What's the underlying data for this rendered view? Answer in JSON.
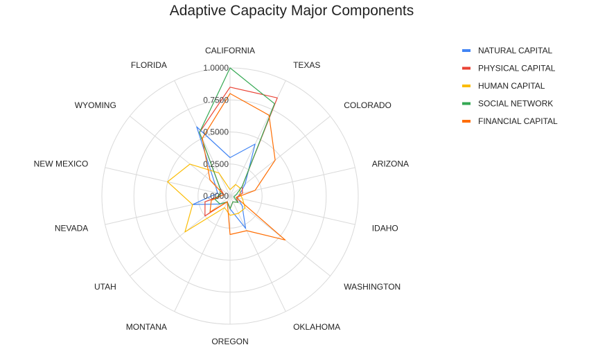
{
  "chart_data": {
    "type": "radar",
    "title": "Adaptive Capacity Major Components",
    "categories": [
      "CALIFORNIA",
      "TEXAS",
      "COLORADO",
      "ARIZONA",
      "IDAHO",
      "WASHINGTON",
      "OKLAHOMA",
      "OREGON",
      "MONTANA",
      "UTAH",
      "NEVADA",
      "NEW MEXICO",
      "WYOMING",
      "FLORIDA"
    ],
    "ylim": [
      0,
      1
    ],
    "tick_values": [
      0,
      0.25,
      0.5,
      0.75,
      1.0
    ],
    "tick_labels": [
      "0.0000",
      "0.2500",
      "0.5000",
      "0.7500",
      "1.0000"
    ],
    "grid": true,
    "legend_position": "right",
    "series": [
      {
        "name": "NATURAL CAPITAL",
        "color": "#4285f4",
        "values": [
          0.3,
          0.45,
          0.15,
          0.08,
          0.06,
          0.12,
          0.28,
          0.1,
          0.05,
          0.1,
          0.3,
          0.1,
          0.15,
          0.6
        ]
      },
      {
        "name": "PHYSICAL CAPITAL",
        "color": "#ea4335",
        "values": [
          0.85,
          0.85,
          0.12,
          0.1,
          0.05,
          0.08,
          0.05,
          0.1,
          0.05,
          0.25,
          0.2,
          0.05,
          0.1,
          0.55
        ]
      },
      {
        "name": "HUMAN CAPITAL",
        "color": "#fbbc04",
        "values": [
          0.05,
          0.1,
          0.1,
          0.08,
          0.1,
          0.15,
          0.15,
          0.15,
          0.1,
          0.45,
          0.3,
          0.5,
          0.4,
          0.2
        ]
      },
      {
        "name": "SOCIAL NETWORK",
        "color": "#34a853",
        "values": [
          1.0,
          0.8,
          0.12,
          0.05,
          0.03,
          0.08,
          0.05,
          0.1,
          0.05,
          0.1,
          0.12,
          0.08,
          0.1,
          0.55
        ]
      },
      {
        "name": "FINANCIAL CAPITAL",
        "color": "#ff6d01",
        "values": [
          0.8,
          0.7,
          0.45,
          0.2,
          0.05,
          0.55,
          0.3,
          0.3,
          0.05,
          0.2,
          0.15,
          0.05,
          0.2,
          0.5
        ]
      }
    ]
  }
}
